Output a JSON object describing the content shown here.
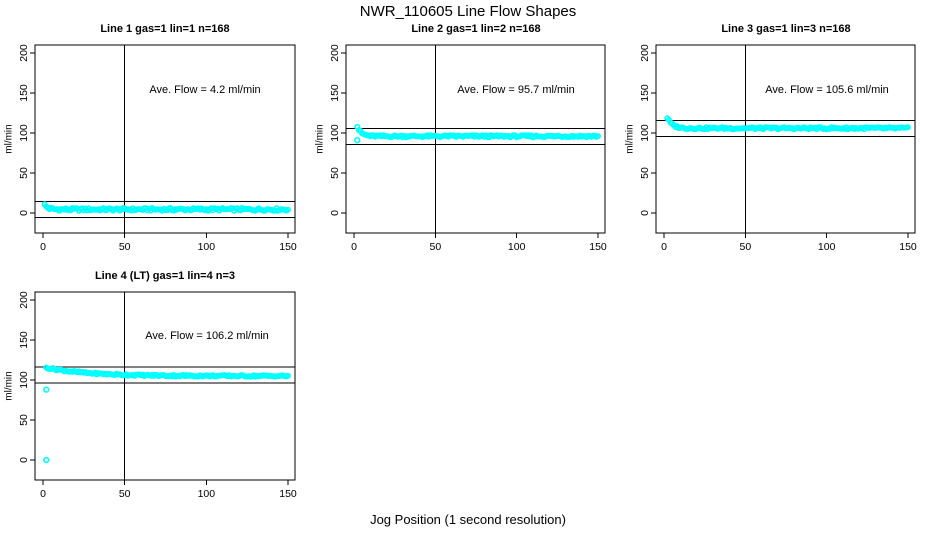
{
  "figure": {
    "title": "NWR_110605  Line Flow Shapes",
    "xlabel": "Jog Position (1 second resolution)",
    "background_color": "#ffffff",
    "point_color": "#00ffff",
    "axis_color": "#000000"
  },
  "chart_data": [
    {
      "type": "scatter",
      "title": "Line 1 gas=1 lin=1 n=168",
      "annotation": "Ave. Flow =  4.2  ml/min",
      "ave_flow": 4.2,
      "n": 168,
      "ylabel": "ml/min",
      "x_ticks": [
        0,
        50,
        100,
        150
      ],
      "y_ticks": [
        0,
        50,
        100,
        150,
        200
      ],
      "xlim": [
        0,
        150
      ],
      "ylim": [
        0,
        200
      ],
      "vline_x": 50,
      "hlines": [
        14.2,
        -5.8
      ],
      "series": {
        "name": "flow",
        "x_start": 1,
        "x_end": 150,
        "start_value": 10,
        "asymptote": 4.5,
        "decay_tau": 2,
        "noise": 1.8,
        "outliers": []
      }
    },
    {
      "type": "scatter",
      "title": "Line 2 gas=1 lin=2 n=168",
      "annotation": "Ave. Flow =  95.7  ml/min",
      "ave_flow": 95.7,
      "n": 168,
      "ylabel": "ml/min",
      "x_ticks": [
        0,
        50,
        100,
        150
      ],
      "y_ticks": [
        0,
        50,
        100,
        150,
        200
      ],
      "xlim": [
        0,
        150
      ],
      "ylim": [
        0,
        200
      ],
      "vline_x": 50,
      "hlines": [
        105.7,
        85.7
      ],
      "series": {
        "name": "flow",
        "x_start": 2,
        "x_end": 150,
        "start_value": 108,
        "asymptote": 96,
        "decay_tau": 2.5,
        "noise": 1.3,
        "outliers": [
          {
            "x": 2,
            "y": 91
          }
        ]
      }
    },
    {
      "type": "scatter",
      "title": "Line 3 gas=1 lin=3 n=168",
      "annotation": "Ave. Flow =  105.6  ml/min",
      "ave_flow": 105.6,
      "n": 168,
      "ylabel": "ml/min",
      "x_ticks": [
        0,
        50,
        100,
        150
      ],
      "y_ticks": [
        0,
        50,
        100,
        150,
        200
      ],
      "xlim": [
        0,
        150
      ],
      "ylim": [
        0,
        200
      ],
      "vline_x": 50,
      "hlines": [
        115.6,
        95.6
      ],
      "series": {
        "name": "flow",
        "x_start": 2,
        "x_end": 150,
        "start_value": 119,
        "asymptote": 106,
        "decay_tau": 3,
        "noise": 1.3,
        "outliers": []
      }
    },
    {
      "type": "scatter",
      "title": "Line 4 (LT) gas=1 lin=4 n=3",
      "annotation": "Ave. Flow =  106.2  ml/min",
      "ave_flow": 106.2,
      "n": 3,
      "ylabel": "ml/min",
      "x_ticks": [
        0,
        50,
        100,
        150
      ],
      "y_ticks": [
        0,
        50,
        100,
        150,
        200
      ],
      "xlim": [
        0,
        150
      ],
      "ylim": [
        0,
        200
      ],
      "vline_x": 50,
      "hlines": [
        116.2,
        96.2
      ],
      "series": {
        "name": "flow",
        "x_start": 2,
        "x_end": 150,
        "start_value": 115.5,
        "asymptote": 105,
        "decay_tau": 25,
        "noise": 1.1,
        "outliers": [
          {
            "x": 2,
            "y": 88
          },
          {
            "x": 2,
            "y": 0
          }
        ]
      }
    }
  ]
}
